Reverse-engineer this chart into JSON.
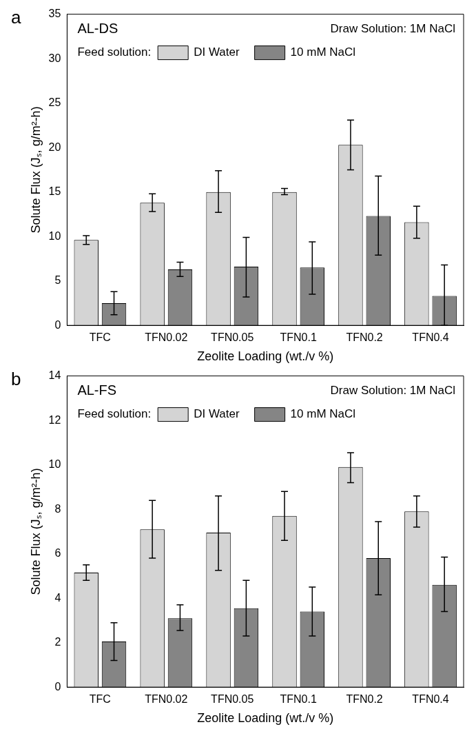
{
  "chart_data": [
    {
      "type": "bar",
      "title": "AL-DS",
      "xlabel": "Zeolite Loading (wt./v %)",
      "ylabel": "Solute Flux (Jₛ, g/m²-h)",
      "legend_title": "Feed solution:",
      "annotations": [
        "a",
        "Draw Solution: 1M NaCl"
      ],
      "categories": [
        "TFC",
        "TFN0.02",
        "TFN0.05",
        "TFN0.1",
        "TFN0.2",
        "TFN0.4"
      ],
      "series": [
        {
          "name": "DI Water",
          "color": "#d4d4d4",
          "values": [
            9.6,
            13.8,
            15.0,
            15.0,
            20.3,
            11.6
          ],
          "errors": [
            [
              9.1,
              10.1
            ],
            [
              12.8,
              14.8
            ],
            [
              12.7,
              17.4
            ],
            [
              14.7,
              15.4
            ],
            [
              17.5,
              23.1
            ],
            [
              9.8,
              13.4
            ]
          ]
        },
        {
          "name": "10 mM NaCl",
          "color": "#858585",
          "values": [
            2.5,
            6.3,
            6.6,
            6.5,
            12.3,
            3.3
          ],
          "errors": [
            [
              1.2,
              3.8
            ],
            [
              5.5,
              7.1
            ],
            [
              3.2,
              9.9
            ],
            [
              3.5,
              9.4
            ],
            [
              7.9,
              16.8
            ],
            [
              0,
              6.8
            ]
          ]
        }
      ],
      "ylim": [
        0,
        35
      ],
      "yticks": [
        0,
        5,
        10,
        15,
        20,
        25,
        30,
        35
      ],
      "grid": false,
      "legend": "top right"
    },
    {
      "type": "bar",
      "title": "AL-FS",
      "xlabel": "Zeolite Loading (wt./v %)",
      "ylabel": "Solute Flux (Jₛ, g/m²-h)",
      "legend_title": "Feed solution:",
      "annotations": [
        "b",
        "Draw Solution: 1M NaCl"
      ],
      "categories": [
        "TFC",
        "TFN0.02",
        "TFN0.05",
        "TFN0.1",
        "TFN0.2",
        "TFN0.4"
      ],
      "series": [
        {
          "name": "DI Water",
          "color": "#d4d4d4",
          "values": [
            5.15,
            7.1,
            6.95,
            7.7,
            9.9,
            7.9
          ],
          "errors": [
            [
              4.8,
              5.5
            ],
            [
              5.8,
              8.4
            ],
            [
              5.25,
              8.6
            ],
            [
              6.6,
              8.8
            ],
            [
              9.2,
              10.55
            ],
            [
              7.2,
              8.6
            ]
          ]
        },
        {
          "name": "10 mM NaCl",
          "color": "#858585",
          "values": [
            2.05,
            3.1,
            3.55,
            3.4,
            5.8,
            4.6
          ],
          "errors": [
            [
              1.2,
              2.9
            ],
            [
              2.55,
              3.7
            ],
            [
              2.3,
              4.8
            ],
            [
              2.3,
              4.5
            ],
            [
              4.15,
              7.45
            ],
            [
              3.4,
              5.85
            ]
          ]
        }
      ],
      "ylim": [
        0,
        14
      ],
      "yticks": [
        0,
        2,
        4,
        6,
        8,
        10,
        12,
        14
      ],
      "grid": false,
      "legend": "top right"
    }
  ]
}
